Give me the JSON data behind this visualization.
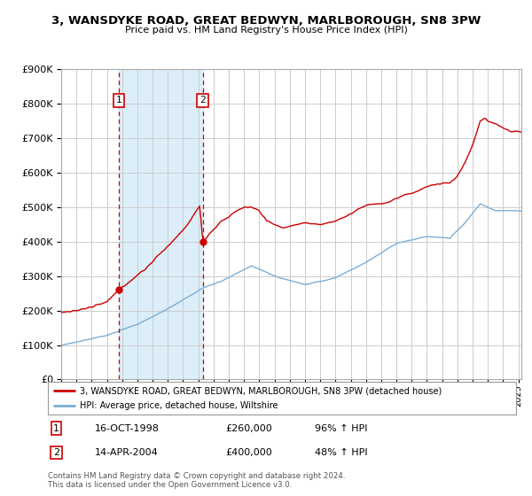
{
  "title": "3, WANSDYKE ROAD, GREAT BEDWYN, MARLBOROUGH, SN8 3PW",
  "subtitle": "Price paid vs. HM Land Registry's House Price Index (HPI)",
  "legend_line1": "3, WANSDYKE ROAD, GREAT BEDWYN, MARLBOROUGH, SN8 3PW (detached house)",
  "legend_line2": "HPI: Average price, detached house, Wiltshire",
  "transaction1_date": "16-OCT-1998",
  "transaction1_price": "£260,000",
  "transaction1_hpi": "96% ↑ HPI",
  "transaction2_date": "14-APR-2004",
  "transaction2_price": "£400,000",
  "transaction2_hpi": "48% ↑ HPI",
  "footer": "Contains HM Land Registry data © Crown copyright and database right 2024.\nThis data is licensed under the Open Government Licence v3.0.",
  "red_color": "#cc0000",
  "blue_color": "#7aaed4",
  "shading_color": "#dceef9",
  "grid_color": "#cccccc",
  "ylim": [
    0,
    900000
  ],
  "yticks": [
    0,
    100000,
    200000,
    300000,
    400000,
    500000,
    600000,
    700000,
    800000,
    900000
  ],
  "transaction1_x": 1998.79,
  "transaction1_y": 260000,
  "transaction2_x": 2004.29,
  "transaction2_y": 400000,
  "xmin": 1995.0,
  "xmax": 2025.2
}
